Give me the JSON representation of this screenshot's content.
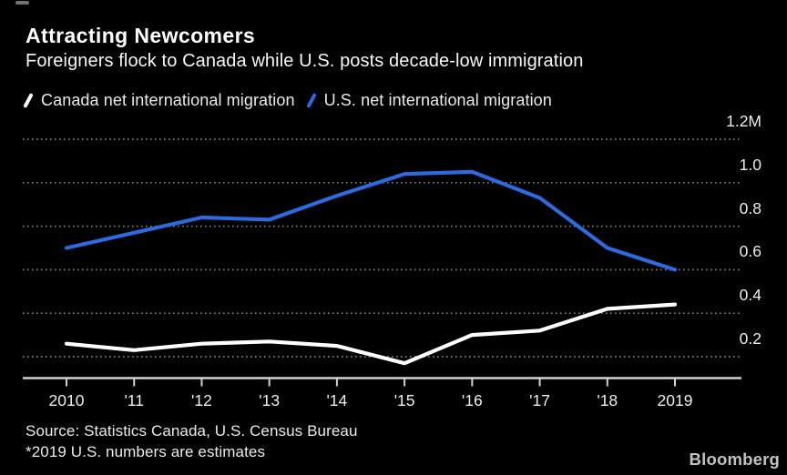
{
  "header": {
    "title": "Attracting Newcomers",
    "subtitle": "Foreigners flock to Canada while U.S. posts decade-low immigration"
  },
  "chart_data": {
    "type": "line",
    "title": "Attracting Newcomers",
    "subtitle": "Foreigners flock to Canada while U.S. posts decade-low immigration",
    "unit": "millions of people",
    "x": [
      2010,
      2011,
      2012,
      2013,
      2014,
      2015,
      2016,
      2017,
      2018,
      2019
    ],
    "x_tick_labels": [
      "2010",
      "'11",
      "'12",
      "'13",
      "'14",
      "'15",
      "'16",
      "'17",
      "'18",
      "2019"
    ],
    "series": [
      {
        "name": "Canada net international migration",
        "color": "#ffffff",
        "values": [
          0.26,
          0.23,
          0.26,
          0.27,
          0.25,
          0.17,
          0.3,
          0.32,
          0.42,
          0.44
        ]
      },
      {
        "name": "U.S. net international migration",
        "color": "#2d6ade",
        "values": [
          0.7,
          0.77,
          0.84,
          0.83,
          0.94,
          1.04,
          1.05,
          0.93,
          0.7,
          0.6
        ]
      }
    ],
    "y_ticks": [
      0.2,
      0.4,
      0.6,
      0.8,
      1.0,
      1.2
    ],
    "y_tick_labels": [
      "0.2",
      "0.4",
      "0.6",
      "0.8",
      "1.0",
      "1.2M"
    ],
    "ylim": [
      0.1,
      1.25
    ],
    "grid": "dotted-horizontal",
    "legend_position": "top",
    "colors": {
      "background": "#000000",
      "grid": "#808080",
      "axis": "#d2d2d2",
      "tick_text": "#ededed"
    }
  },
  "footer": {
    "source": "Source: Statistics Canada, U.S. Census Bureau",
    "note": "*2019 U.S. numbers are estimates",
    "brand": "Bloomberg"
  }
}
